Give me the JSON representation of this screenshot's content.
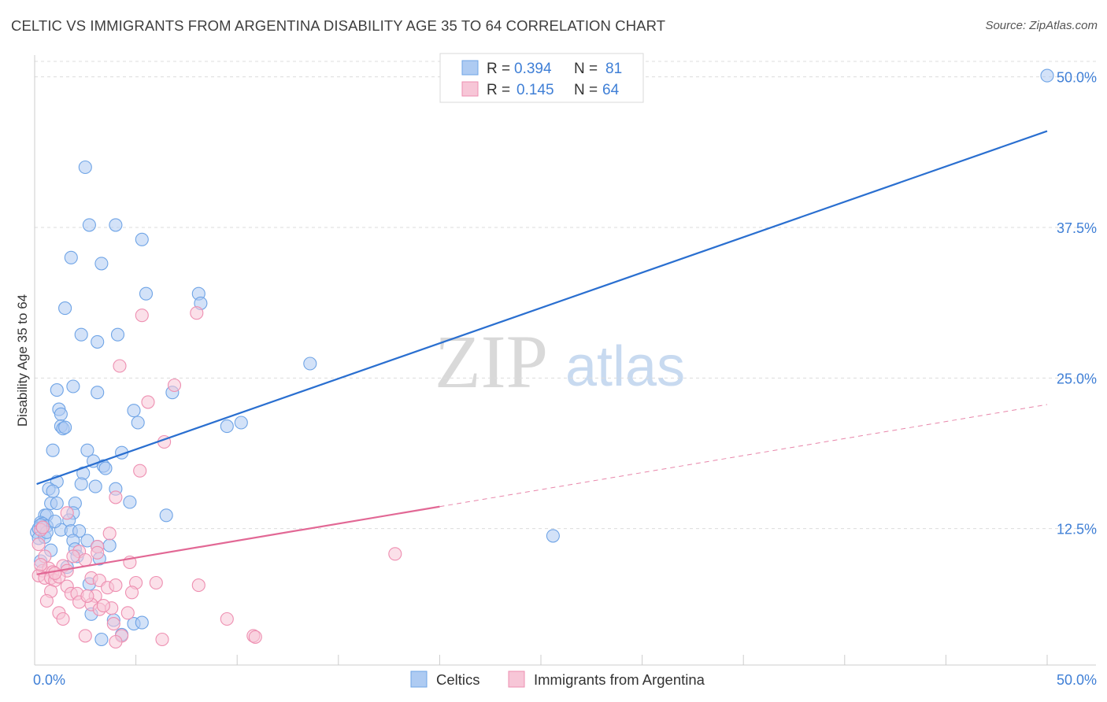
{
  "title": "CELTIC VS IMMIGRANTS FROM ARGENTINA DISABILITY AGE 35 TO 64 CORRELATION CHART",
  "source": "Source: ZipAtlas.com",
  "watermark": {
    "zip": "ZIP",
    "atlas": "atlas"
  },
  "legend": {
    "rows": [
      {
        "r_label": "R =",
        "r_value": "0.394",
        "n_label": "N =",
        "n_value": "81"
      },
      {
        "r_label": "R =",
        "r_value": "0.145",
        "n_label": "N =",
        "n_value": "64"
      }
    ]
  },
  "chart_data": {
    "type": "scatter",
    "ylabel": "Disability Age 35 to 64",
    "xlim": [
      0,
      50
    ],
    "ylim": [
      0,
      52
    ],
    "x_tick_labels": {
      "min": "0.0%",
      "max": "50.0%"
    },
    "y_ticks": [
      {
        "value": 12.5,
        "label": "12.5%"
      },
      {
        "value": 25.0,
        "label": "25.0%"
      },
      {
        "value": 37.5,
        "label": "37.5%"
      },
      {
        "value": 50.0,
        "label": "50.0%"
      }
    ],
    "grid": true,
    "legend_position": "top-center",
    "series": [
      {
        "name": "Celtics",
        "color": "#6fa4e6",
        "fill": "#aecbf2",
        "trend": {
          "x0": 0.1,
          "y0": 16.2,
          "x1": 50.0,
          "y1": 45.5,
          "dashed_from": null
        },
        "points": [
          [
            2.5,
            42.5
          ],
          [
            2.7,
            37.7
          ],
          [
            4.0,
            37.7
          ],
          [
            5.3,
            36.5
          ],
          [
            1.8,
            35.0
          ],
          [
            3.3,
            34.5
          ],
          [
            5.5,
            32.0
          ],
          [
            8.1,
            32.0
          ],
          [
            8.2,
            31.2
          ],
          [
            1.5,
            30.8
          ],
          [
            2.3,
            28.6
          ],
          [
            3.1,
            28.0
          ],
          [
            4.1,
            28.6
          ],
          [
            13.6,
            26.2
          ],
          [
            1.9,
            24.3
          ],
          [
            1.1,
            24.0
          ],
          [
            3.1,
            23.8
          ],
          [
            6.8,
            23.8
          ],
          [
            1.2,
            22.4
          ],
          [
            1.3,
            22.0
          ],
          [
            4.9,
            22.3
          ],
          [
            1.3,
            21.0
          ],
          [
            1.4,
            20.8
          ],
          [
            1.5,
            20.9
          ],
          [
            5.1,
            21.3
          ],
          [
            9.5,
            21.0
          ],
          [
            10.2,
            21.3
          ],
          [
            0.9,
            19.0
          ],
          [
            2.6,
            19.0
          ],
          [
            4.3,
            18.8
          ],
          [
            2.9,
            18.1
          ],
          [
            3.4,
            17.7
          ],
          [
            3.5,
            17.5
          ],
          [
            2.4,
            17.1
          ],
          [
            1.1,
            16.4
          ],
          [
            3.0,
            16.0
          ],
          [
            0.7,
            15.8
          ],
          [
            4.0,
            15.8
          ],
          [
            0.9,
            15.6
          ],
          [
            0.8,
            14.6
          ],
          [
            1.1,
            14.6
          ],
          [
            2.0,
            14.6
          ],
          [
            4.7,
            14.7
          ],
          [
            0.5,
            13.6
          ],
          [
            0.6,
            13.6
          ],
          [
            1.9,
            13.8
          ],
          [
            6.5,
            13.6
          ],
          [
            0.3,
            13.0
          ],
          [
            0.4,
            12.9
          ],
          [
            0.6,
            12.7
          ],
          [
            1.7,
            13.2
          ],
          [
            1.3,
            12.4
          ],
          [
            0.1,
            12.2
          ],
          [
            0.2,
            12.5
          ],
          [
            1.8,
            12.3
          ],
          [
            2.2,
            12.3
          ],
          [
            0.2,
            11.7
          ],
          [
            0.5,
            11.8
          ],
          [
            1.9,
            11.5
          ],
          [
            2.6,
            11.5
          ],
          [
            3.1,
            11.0
          ],
          [
            3.7,
            11.1
          ],
          [
            2.0,
            10.8
          ],
          [
            0.8,
            10.7
          ],
          [
            2.1,
            10.2
          ],
          [
            3.2,
            10.0
          ],
          [
            0.3,
            9.8
          ],
          [
            1.6,
            9.3
          ],
          [
            25.6,
            11.9
          ],
          [
            2.7,
            7.9
          ],
          [
            2.8,
            5.4
          ],
          [
            3.9,
            4.9
          ],
          [
            4.9,
            4.6
          ],
          [
            5.3,
            4.7
          ],
          [
            4.3,
            3.7
          ],
          [
            3.3,
            3.3
          ],
          [
            50.0,
            50.1
          ],
          [
            0.3,
            12.8
          ],
          [
            0.6,
            12.2
          ],
          [
            1.0,
            13.1
          ],
          [
            2.3,
            16.2
          ]
        ]
      },
      {
        "name": "Immigrants from Argentina",
        "color": "#ee8fb1",
        "fill": "#f7c6d7",
        "trend": {
          "x0": 0.1,
          "y0": 8.7,
          "x1": 50.0,
          "y1": 22.8,
          "dashed_from": 20.0
        },
        "points": [
          [
            5.3,
            30.2
          ],
          [
            8.0,
            30.4
          ],
          [
            4.2,
            26.0
          ],
          [
            6.9,
            24.4
          ],
          [
            5.6,
            23.0
          ],
          [
            6.4,
            19.7
          ],
          [
            5.2,
            17.3
          ],
          [
            4.0,
            15.1
          ],
          [
            1.6,
            13.8
          ],
          [
            0.3,
            12.4
          ],
          [
            3.7,
            12.1
          ],
          [
            3.1,
            11.0
          ],
          [
            2.2,
            10.6
          ],
          [
            0.5,
            10.2
          ],
          [
            3.1,
            10.5
          ],
          [
            1.9,
            10.2
          ],
          [
            2.5,
            9.9
          ],
          [
            4.7,
            9.7
          ],
          [
            1.4,
            9.4
          ],
          [
            0.4,
            9.0
          ],
          [
            0.7,
            9.2
          ],
          [
            0.9,
            8.9
          ],
          [
            1.6,
            9.0
          ],
          [
            0.2,
            8.6
          ],
          [
            0.5,
            8.4
          ],
          [
            0.8,
            8.4
          ],
          [
            1.0,
            8.2
          ],
          [
            1.2,
            8.5
          ],
          [
            2.8,
            8.4
          ],
          [
            3.2,
            8.2
          ],
          [
            5.0,
            8.0
          ],
          [
            6.0,
            8.0
          ],
          [
            8.1,
            7.8
          ],
          [
            3.6,
            7.6
          ],
          [
            4.0,
            7.8
          ],
          [
            1.6,
            7.7
          ],
          [
            1.8,
            7.1
          ],
          [
            2.1,
            7.1
          ],
          [
            0.8,
            7.3
          ],
          [
            4.8,
            7.2
          ],
          [
            3.0,
            6.9
          ],
          [
            2.2,
            6.4
          ],
          [
            2.8,
            6.2
          ],
          [
            3.2,
            5.8
          ],
          [
            3.8,
            5.9
          ],
          [
            0.6,
            6.5
          ],
          [
            1.2,
            5.5
          ],
          [
            4.6,
            5.5
          ],
          [
            1.4,
            5.0
          ],
          [
            9.5,
            5.0
          ],
          [
            3.9,
            4.6
          ],
          [
            2.5,
            3.6
          ],
          [
            4.3,
            3.6
          ],
          [
            6.3,
            3.3
          ],
          [
            4.0,
            3.1
          ],
          [
            10.8,
            3.6
          ],
          [
            10.9,
            3.5
          ],
          [
            17.8,
            10.4
          ],
          [
            0.4,
            12.6
          ],
          [
            0.2,
            11.2
          ],
          [
            1.0,
            8.8
          ],
          [
            2.6,
            6.9
          ],
          [
            3.4,
            6.1
          ],
          [
            0.3,
            9.5
          ]
        ]
      }
    ]
  },
  "bottom_legend": [
    {
      "label": "Celtics",
      "color": "#6fa4e6",
      "fill": "#aecbf2"
    },
    {
      "label": "Immigrants from Argentina",
      "color": "#ee8fb1",
      "fill": "#f7c6d7"
    }
  ],
  "colors": {
    "blue_trend": "#2a6fd0",
    "pink_trend": "#e26895",
    "grid": "#dcdcdc",
    "axis": "#cccccc"
  }
}
